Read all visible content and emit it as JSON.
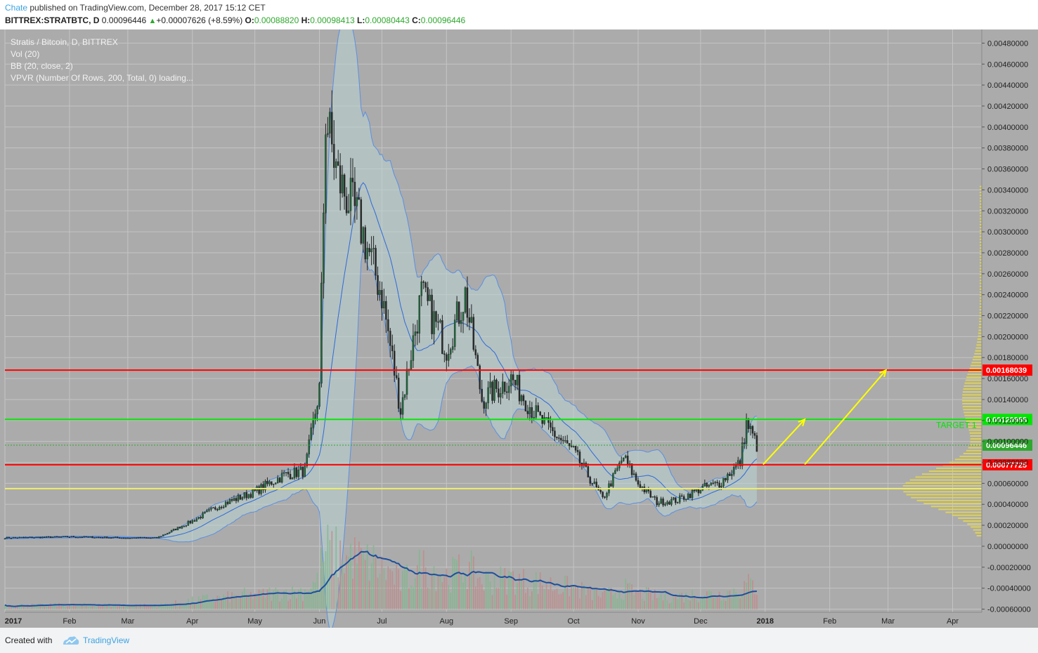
{
  "header": {
    "author": "Chate",
    "published": " published on TradingView.com, December 28, 2017 15:12 CET",
    "symbol": "BITTREX:STRATBTC, D",
    "price": "0.00096446",
    "change_arrow": "▲",
    "change": "+0.00007626 (+8.59%)",
    "o_label": "O:",
    "o_value": "0.00088820",
    "h_label": "H:",
    "h_value": "0.00098413",
    "l_label": "L:",
    "l_value": "0.00080443",
    "c_label": "C:",
    "c_value": "0.00096446"
  },
  "legend": {
    "title": "Stratis / Bitcoin, D, BITTREX",
    "vol": "Vol (20)",
    "bb": "BB (20, close, 2)",
    "vpvr": "VPVR (Number Of Rows, 200, Total, 0) loading..."
  },
  "footer": {
    "created_with": "Created with",
    "brand": "TradingView"
  },
  "colors": {
    "background": "#ababab",
    "candle_up": "#1e6a3a",
    "candle_down": "#2a2a2a",
    "bb_band": "#5b8fe0",
    "bb_fill": "#b9d4d4",
    "volume_up": "#7fb88c",
    "volume_down": "#c28a8a",
    "volume_ma": "#1d4f9c",
    "resistance": "#ff0000",
    "target": "#00e600",
    "arrow": "#ffff00",
    "vpvr": "#e6d84a"
  },
  "chart_data": {
    "type": "candlestick",
    "interval": "1D",
    "y_scale": "linear",
    "ylim": [
      -0.0006,
      0.0049
    ],
    "y_ticks": [
      "0.00480000",
      "0.00460000",
      "0.00440000",
      "0.00420000",
      "0.00400000",
      "0.00380000",
      "0.00360000",
      "0.00340000",
      "0.00320000",
      "0.00300000",
      "0.00280000",
      "0.00260000",
      "0.00240000",
      "0.00220000",
      "0.00200000",
      "0.00180000",
      "0.00160000",
      "0.00140000",
      "0.00120000",
      "0.00100000",
      "0.00080000",
      "0.00060000",
      "0.00040000",
      "0.00020000",
      "0.00000000",
      "-0.00020000",
      "-0.00040000",
      "-0.00060000"
    ],
    "x_ticks": [
      "2017",
      "Feb",
      "Mar",
      "Apr",
      "May",
      "Jun",
      "Jul",
      "Aug",
      "Sep",
      "Oct",
      "Nov",
      "Dec",
      "2018",
      "Feb",
      "Mar",
      "Apr"
    ],
    "x_range": [
      "2017-01-01",
      "2018-04-15"
    ],
    "price_trend": [
      {
        "date": "2017-01-01",
        "close": 8e-05
      },
      {
        "date": "2017-02-01",
        "close": 9e-05
      },
      {
        "date": "2017-03-01",
        "close": 8e-05
      },
      {
        "date": "2017-03-15",
        "close": 8e-05
      },
      {
        "date": "2017-04-01",
        "close": 0.00024
      },
      {
        "date": "2017-04-15",
        "close": 0.0004
      },
      {
        "date": "2017-05-01",
        "close": 0.00052
      },
      {
        "date": "2017-05-15",
        "close": 0.00068
      },
      {
        "date": "2017-05-25",
        "close": 0.00072
      },
      {
        "date": "2017-06-01",
        "close": 0.0015
      },
      {
        "date": "2017-06-04",
        "close": 0.0041
      },
      {
        "date": "2017-06-10",
        "close": 0.0035
      },
      {
        "date": "2017-06-20",
        "close": 0.0031
      },
      {
        "date": "2017-07-01",
        "close": 0.0024
      },
      {
        "date": "2017-07-10",
        "close": 0.0013
      },
      {
        "date": "2017-07-20",
        "close": 0.0024
      },
      {
        "date": "2017-08-01",
        "close": 0.0019
      },
      {
        "date": "2017-08-10",
        "close": 0.0024
      },
      {
        "date": "2017-08-18",
        "close": 0.0014
      },
      {
        "date": "2017-09-01",
        "close": 0.0016
      },
      {
        "date": "2017-09-15",
        "close": 0.0012
      },
      {
        "date": "2017-10-01",
        "close": 0.0009
      },
      {
        "date": "2017-10-15",
        "close": 0.00045
      },
      {
        "date": "2017-10-25",
        "close": 0.00085
      },
      {
        "date": "2017-11-01",
        "close": 0.0006
      },
      {
        "date": "2017-11-10",
        "close": 0.00042
      },
      {
        "date": "2017-11-20",
        "close": 0.00044
      },
      {
        "date": "2017-12-01",
        "close": 0.00055
      },
      {
        "date": "2017-12-10",
        "close": 0.0006
      },
      {
        "date": "2017-12-20",
        "close": 0.0008
      },
      {
        "date": "2017-12-23",
        "close": 0.00118
      },
      {
        "date": "2017-12-28",
        "close": 0.00096446
      }
    ],
    "horizontal_lines": [
      {
        "label": "0.00168039",
        "value": 0.00168039,
        "color": "#ff0000"
      },
      {
        "label": "0.00120968",
        "value": 0.00120968,
        "color": "#00e600"
      },
      {
        "label": "0.00096446",
        "value": 0.00096446,
        "color": "#2ea82e"
      },
      {
        "label": "0.00077725",
        "value": 0.00077725,
        "color": "#ff0000"
      },
      {
        "label": "",
        "value": 0.00055,
        "color": "#f0ee6a"
      }
    ],
    "annotations": [
      {
        "text": "TARGET 1",
        "value": 0.00121
      }
    ],
    "projection_arrows": [
      {
        "from_date": "2017-12-31",
        "from_value": 0.00078,
        "to_date": "2018-01-20",
        "to_value": 0.00121
      },
      {
        "from_date": "2018-01-20",
        "from_value": 0.00078,
        "to_date": "2018-02-28",
        "to_value": 0.00168
      }
    ]
  }
}
